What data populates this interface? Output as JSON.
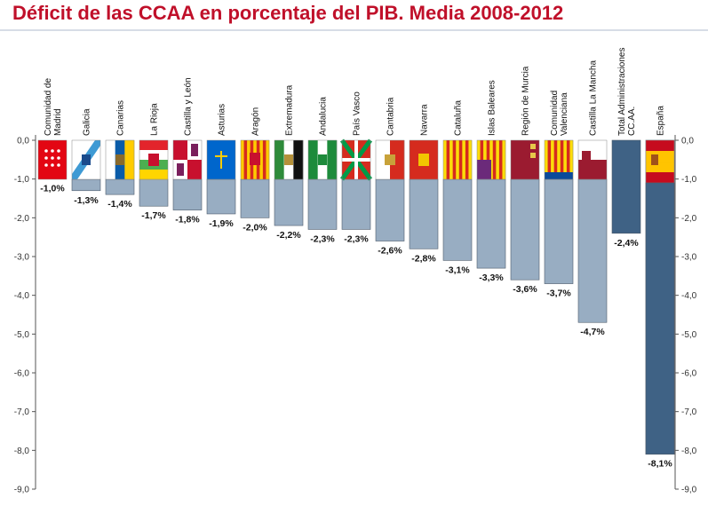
{
  "chart_data": {
    "type": "bar",
    "title": "Déficit de las CCAA en porcentaje del PIB. Media 2008-2012",
    "xlabel": "",
    "ylabel": "",
    "ylim": [
      -9.0,
      0.0
    ],
    "y_ticks": [
      "0,0",
      "-1,0",
      "-2,0",
      "-3,0",
      "-4,0",
      "-5,0",
      "-6,0",
      "-7,0",
      "-8,0",
      "-9,0"
    ],
    "y_tick_values": [
      0,
      -1,
      -2,
      -3,
      -4,
      -5,
      -6,
      -7,
      -8,
      -9
    ],
    "categories": [
      "Comunidad de Madrid",
      "Galicia",
      "Canarias",
      "La Rioja",
      "Castilla y León",
      "Asturias",
      "Aragón",
      "Extremadura",
      "Andalucia",
      "País Vasco",
      "Cantabria",
      "Navarra",
      "Cataluña",
      "Islas Baleares",
      "Región de Murcia",
      "Comunidad Valenciana",
      "Castilla La Mancha",
      "Total Administraciones CC.AA.",
      "España"
    ],
    "category_lines": [
      [
        "Comunidad de",
        "Madrid"
      ],
      [
        "Galicia"
      ],
      [
        "Canarias"
      ],
      [
        "La Rioja"
      ],
      [
        "Castilla y León"
      ],
      [
        "Asturias"
      ],
      [
        "Aragón"
      ],
      [
        "Extremadura"
      ],
      [
        "Andalucia"
      ],
      [
        "País Vasco"
      ],
      [
        "Cantabria"
      ],
      [
        "Navarra"
      ],
      [
        "Cataluña"
      ],
      [
        "Islas Baleares"
      ],
      [
        "Región de Murcia"
      ],
      [
        "Comunidad",
        "Valenciana"
      ],
      [
        "Castilla La Mancha"
      ],
      [
        "Total Administraciones",
        "CC.AA."
      ],
      [
        "España"
      ]
    ],
    "values": [
      -1.0,
      -1.3,
      -1.4,
      -1.7,
      -1.8,
      -1.9,
      -2.0,
      -2.2,
      -2.3,
      -2.3,
      -2.6,
      -2.8,
      -3.1,
      -3.3,
      -3.6,
      -3.7,
      -4.7,
      -2.4,
      -8.1
    ],
    "value_labels": [
      "-1,0%",
      "-1,3%",
      "-1,4%",
      "-1,7%",
      "-1,8%",
      "-1,9%",
      "-2,0%",
      "-2,2%",
      "-2,3%",
      "-2,3%",
      "-2,6%",
      "-2,8%",
      "-3,1%",
      "-3,3%",
      "-3,6%",
      "-3,7%",
      "-4,7%",
      "-2,4%",
      "-8,1%"
    ],
    "flags": [
      "flag-madrid",
      "flag-galicia",
      "flag-canarias",
      "flag-la-rioja",
      "flag-castilla-y-leon",
      "flag-asturias",
      "flag-aragon",
      "flag-extremadura",
      "flag-andalucia",
      "flag-pais-vasco",
      "flag-cantabria",
      "flag-navarra",
      "flag-cataluna",
      "flag-islas-baleares",
      "flag-murcia",
      "flag-valenciana",
      "flag-castilla-la-mancha",
      "",
      "flag-espana"
    ],
    "colors": {
      "region_bar": "#98adc2",
      "total_bar": "#3f6285",
      "title": "#c0102a",
      "grid": "#c8c8c8"
    },
    "grid": false,
    "secondary_y_axis": true
  }
}
